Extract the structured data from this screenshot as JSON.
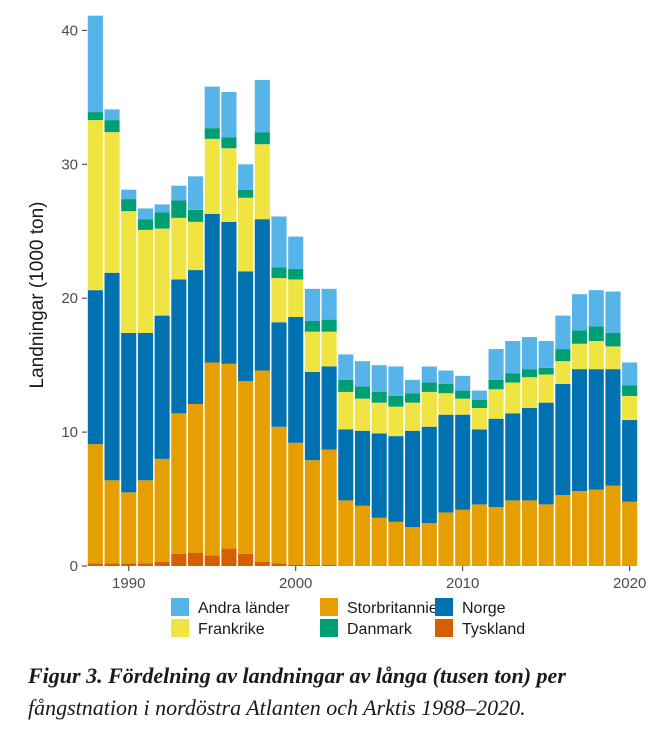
{
  "chart_data": {
    "type": "bar",
    "stacked": true,
    "title": "",
    "xlabel": "",
    "ylabel": "Landningar (1000 ton)",
    "ylim": [
      0,
      41
    ],
    "yticks": [
      0,
      10,
      20,
      30,
      40
    ],
    "xticks": [
      1990,
      2000,
      2010,
      2020
    ],
    "grid": false,
    "legend_position": "bottom",
    "x": [
      1988,
      1989,
      1990,
      1991,
      1992,
      1993,
      1994,
      1995,
      1996,
      1997,
      1998,
      1999,
      2000,
      2001,
      2002,
      2003,
      2004,
      2005,
      2006,
      2007,
      2008,
      2009,
      2010,
      2011,
      2012,
      2013,
      2014,
      2015,
      2016,
      2017,
      2018,
      2019,
      2020
    ],
    "series": [
      {
        "name": "Tyskland",
        "color": "#d55e00",
        "values": [
          0.2,
          0.2,
          0.2,
          0.2,
          0.3,
          0.9,
          1.0,
          0.8,
          1.3,
          0.9,
          0.3,
          0.2,
          0.1,
          0.1,
          0.1,
          0,
          0,
          0,
          0,
          0,
          0,
          0,
          0,
          0,
          0,
          0,
          0,
          0,
          0,
          0,
          0,
          0,
          0
        ]
      },
      {
        "name": "Storbritannien",
        "color": "#e69f00",
        "values": [
          8.9,
          6.2,
          5.3,
          6.2,
          7.7,
          10.5,
          11.1,
          14.4,
          13.8,
          12.9,
          14.3,
          10.2,
          9.1,
          7.8,
          8.6,
          4.9,
          4.5,
          3.6,
          3.3,
          2.9,
          3.2,
          4.0,
          4.2,
          4.6,
          4.4,
          4.9,
          4.9,
          4.6,
          5.3,
          5.6,
          5.7,
          6.0,
          4.8
        ]
      },
      {
        "name": "Norge",
        "color": "#0072b2",
        "values": [
          11.5,
          15.5,
          11.9,
          11.0,
          10.7,
          10.0,
          10.0,
          11.1,
          10.6,
          8.2,
          11.3,
          7.8,
          9.4,
          6.6,
          6.2,
          5.3,
          5.6,
          6.3,
          6.4,
          7.2,
          7.2,
          7.3,
          7.1,
          5.6,
          6.6,
          6.5,
          6.9,
          7.6,
          8.3,
          9.1,
          9.0,
          8.7,
          6.1
        ]
      },
      {
        "name": "Frankrike",
        "color": "#f0e442",
        "values": [
          12.7,
          10.5,
          9.1,
          7.7,
          6.5,
          4.6,
          3.6,
          5.6,
          5.5,
          5.5,
          5.6,
          3.3,
          2.8,
          3.0,
          2.6,
          2.8,
          2.4,
          2.3,
          2.2,
          2.1,
          2.6,
          1.6,
          1.2,
          1.6,
          2.2,
          2.3,
          2.3,
          2.1,
          1.7,
          1.9,
          2.1,
          1.7,
          1.8
        ]
      },
      {
        "name": "Danmark",
        "color": "#009e73",
        "values": [
          0.6,
          0.9,
          0.9,
          0.8,
          1.2,
          1.3,
          0.9,
          0.8,
          0.8,
          0.6,
          0.9,
          0.8,
          0.8,
          0.8,
          0.9,
          0.9,
          0.9,
          0.8,
          0.8,
          0.7,
          0.7,
          0.7,
          0.6,
          0.6,
          0.7,
          0.7,
          0.6,
          0.5,
          0.9,
          1.0,
          1.1,
          1.0,
          0.8
        ]
      },
      {
        "name": "Andra länder",
        "color": "#56b4e9",
        "values": [
          7.2,
          0.8,
          0.7,
          0.8,
          0.6,
          1.1,
          2.5,
          3.1,
          3.4,
          1.9,
          3.9,
          3.8,
          2.4,
          2.4,
          2.3,
          1.9,
          1.9,
          2.0,
          2.2,
          1.0,
          1.2,
          1.0,
          1.1,
          0.7,
          2.3,
          2.4,
          2.4,
          2.0,
          2.5,
          2.7,
          2.7,
          3.1,
          1.7
        ]
      }
    ]
  },
  "legend": {
    "items": [
      {
        "label": "Andra länder",
        "color": "#56b4e9"
      },
      {
        "label": "Frankrike",
        "color": "#f0e442"
      },
      {
        "label": "Storbritannien",
        "color": "#e69f00"
      },
      {
        "label": "Danmark",
        "color": "#009e73"
      },
      {
        "label": "Norge",
        "color": "#0072b2"
      },
      {
        "label": "Tyskland",
        "color": "#d55e00"
      }
    ]
  },
  "caption": {
    "bold": "Figur 3. Fördelning av landningar av långa (tusen ton) per",
    "rest": "fångstnation i nordöstra Atlanten och Arktis 1988–2020."
  }
}
